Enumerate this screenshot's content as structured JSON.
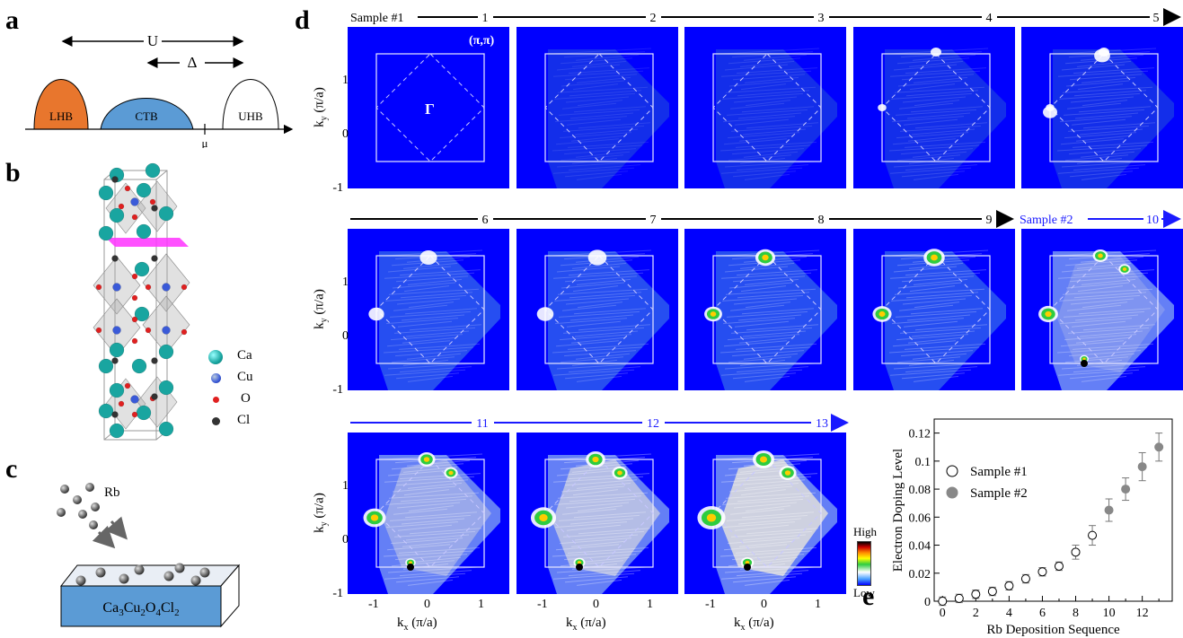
{
  "panels": {
    "a": {
      "label": "a",
      "u_label": "U",
      "delta_label": "Δ",
      "bands": [
        "LHB",
        "CTB",
        "UHB"
      ],
      "mu_label": "μ",
      "colors": {
        "lhb": "#e8762d",
        "ctb": "#5b9bd5",
        "uhb": "#ffffff"
      }
    },
    "b": {
      "label": "b",
      "legend": [
        {
          "name": "Ca",
          "color": "#19a5a0"
        },
        {
          "name": "Cu",
          "color": "#3a5ad8"
        },
        {
          "name": "O",
          "color": "#e02020"
        },
        {
          "name": "Cl",
          "color": "#333333"
        }
      ]
    },
    "c": {
      "label": "c",
      "rb_label": "Rb",
      "substrate_formula": [
        "Ca",
        "3",
        "Cu",
        "2",
        "O",
        "4",
        "Cl",
        "2"
      ]
    },
    "d": {
      "label": "d",
      "row1": {
        "sample": "Sample #1",
        "numbers": [
          "1",
          "2",
          "3",
          "4",
          "5"
        ]
      },
      "row2": {
        "numbers": [
          "6",
          "7",
          "8",
          "9"
        ],
        "sample": "Sample #2",
        "numbers_blue": [
          "10"
        ]
      },
      "row3": {
        "numbers": [
          "11",
          "12",
          "13"
        ]
      },
      "pi_label": "(π,π)",
      "gamma_label": "Γ",
      "ylabel_main": "k",
      "ylabel_sub": "y",
      "ylabel_unit": " (π/a)",
      "xlabel_main": "k",
      "xlabel_sub": "x",
      "xlabel_unit": " (π/a)",
      "yticks": [
        "1",
        "0",
        "-1"
      ],
      "xticks": [
        "-1",
        "0",
        "1"
      ],
      "colorbar": {
        "high": "High",
        "low": "Low"
      },
      "colors": {
        "map_bg": "#0000ff",
        "row_black": "#000000",
        "row_blue": "#1a1aff"
      }
    },
    "e": {
      "label": "e",
      "chart_data": {
        "type": "scatter",
        "ylabel": "Electron Doping Level",
        "xlabel": "Rb Deposition Sequence",
        "xlim": [
          -0.5,
          13.8
        ],
        "ylim": [
          0,
          0.13
        ],
        "xticks": [
          0,
          2,
          4,
          6,
          8,
          10,
          12
        ],
        "yticks": [
          0,
          0.02,
          0.04,
          0.06,
          0.08,
          0.1,
          0.12
        ],
        "ytick_labels": [
          "0",
          "0.02",
          "0.04",
          "0.06",
          "0.08",
          "0.1",
          "0.12"
        ],
        "legend_position": "upper-left",
        "series": [
          {
            "name": "Sample #1",
            "marker": "open-circle",
            "x": [
              0,
              1,
              2,
              3,
              4,
              5,
              6,
              7,
              8,
              9
            ],
            "y": [
              0.0,
              0.002,
              0.005,
              0.007,
              0.011,
              0.016,
              0.021,
              0.025,
              0.035,
              0.047
            ],
            "err": [
              0.003,
              0.003,
              0.003,
              0.003,
              0.003,
              0.003,
              0.003,
              0.003,
              0.005,
              0.007
            ]
          },
          {
            "name": "Sample #2",
            "marker": "filled-circle",
            "x": [
              10,
              11,
              12,
              13
            ],
            "y": [
              0.065,
              0.08,
              0.096,
              0.11
            ],
            "err": [
              0.008,
              0.008,
              0.01,
              0.01
            ]
          }
        ]
      }
    }
  }
}
